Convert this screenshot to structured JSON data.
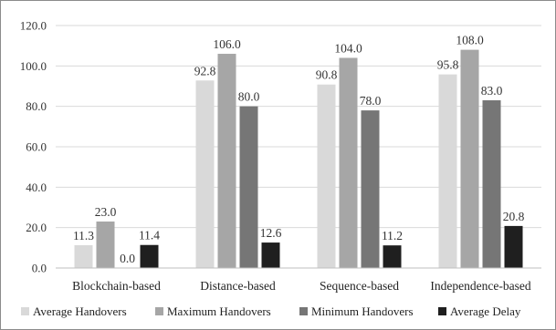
{
  "chart_data": {
    "type": "bar",
    "categories": [
      "Blockchain-based",
      "Distance-based",
      "Sequence-based",
      "Independence-based"
    ],
    "series": [
      {
        "name": "Average Handovers",
        "color": "#d9d9d9",
        "values": [
          11.3,
          92.8,
          90.8,
          95.8
        ],
        "labels": [
          "11.3",
          "92.8",
          "90.8",
          "95.8"
        ]
      },
      {
        "name": "Maximum Handovers",
        "color": "#a6a6a6",
        "values": [
          23.0,
          106.0,
          104.0,
          108.0
        ],
        "labels": [
          "23.0",
          "106.0",
          "104.0",
          "108.0"
        ]
      },
      {
        "name": "Minimum Handovers",
        "color": "#767676",
        "values": [
          0.0,
          80.0,
          78.0,
          83.0
        ],
        "labels": [
          "0.0",
          "80.0",
          "78.0",
          "83.0"
        ]
      },
      {
        "name": "Average Delay",
        "color": "#1f1f1f",
        "values": [
          11.4,
          12.6,
          11.2,
          20.8
        ],
        "labels": [
          "11.4",
          "12.6",
          "11.2",
          "20.8"
        ]
      }
    ],
    "yticks": [
      "0.0",
      "20.0",
      "40.0",
      "60.0",
      "80.0",
      "100.0",
      "120.0"
    ],
    "ylim": [
      0,
      120
    ],
    "grid": true,
    "legend": "bottom",
    "title": "",
    "xlabel": "",
    "ylabel": ""
  }
}
